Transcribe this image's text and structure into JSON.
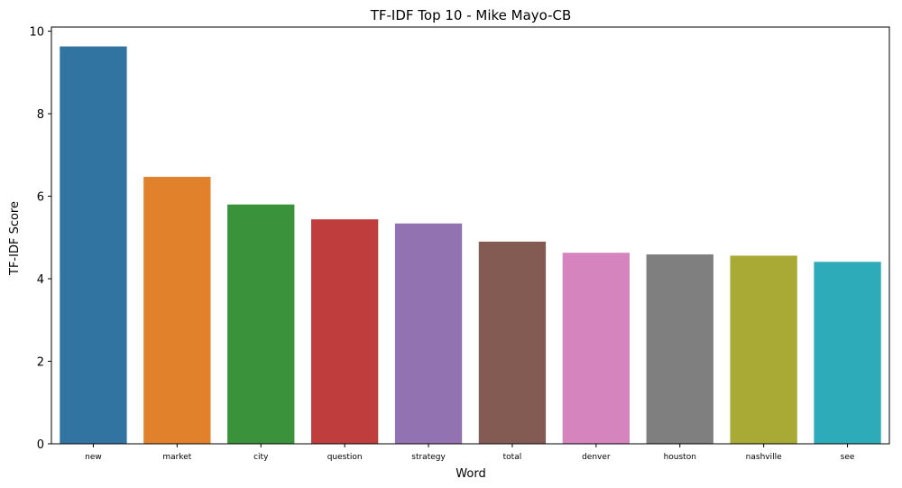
{
  "chart_data": {
    "type": "bar",
    "title": "TF-IDF Top 10 - Mike Mayo-CB",
    "xlabel": "Word",
    "ylabel": "TF-IDF Score",
    "categories": [
      "new",
      "market",
      "city",
      "question",
      "strategy",
      "total",
      "denver",
      "houston",
      "nashville",
      "see"
    ],
    "values": [
      9.63,
      6.47,
      5.8,
      5.44,
      5.34,
      4.9,
      4.63,
      4.59,
      4.56,
      4.41
    ],
    "colors": [
      "#3274a1",
      "#e1812c",
      "#3a923a",
      "#c03d3e",
      "#9372b2",
      "#845b53",
      "#d684bd",
      "#7f7f7f",
      "#a9aa35",
      "#2eabb8"
    ],
    "ylim": [
      0,
      10.1
    ],
    "yticks": [
      0,
      2,
      4,
      6,
      8,
      10
    ],
    "grid": false,
    "legend": "none"
  }
}
